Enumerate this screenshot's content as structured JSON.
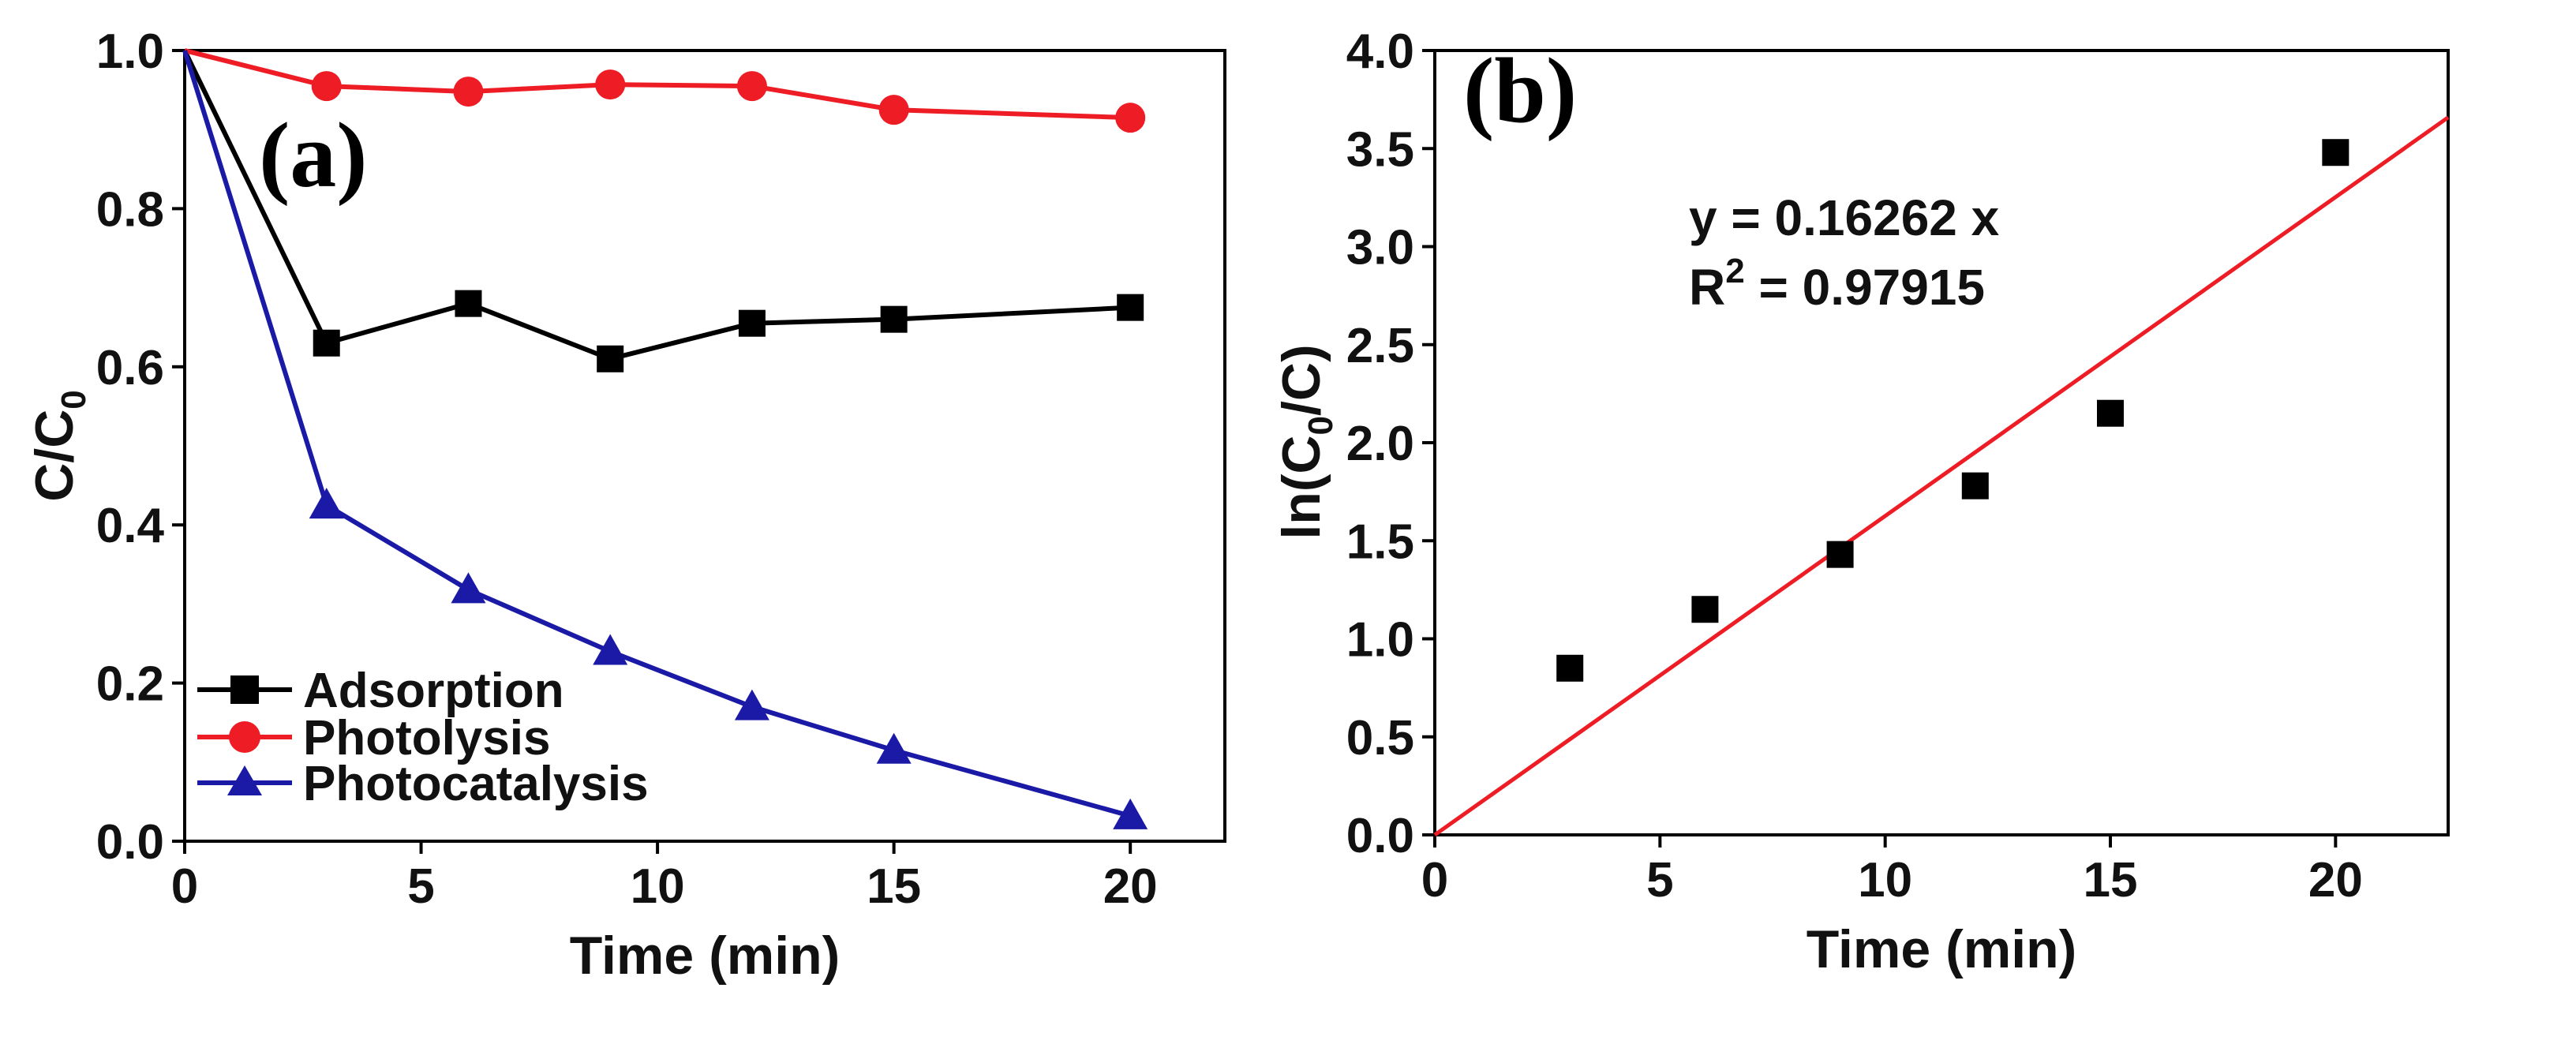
{
  "chart_data": [
    {
      "type": "line",
      "panel_label": "(a)",
      "xlabel": "Time (min)",
      "ylabel": {
        "main": "C/C",
        "sub": "0"
      },
      "xlim": [
        0,
        22
      ],
      "ylim": [
        0,
        1.0
      ],
      "xticks": [
        0,
        5,
        10,
        15,
        20
      ],
      "xtick_labels": [
        "0",
        "5",
        "10",
        "15",
        "20"
      ],
      "yticks": [
        0,
        0.2,
        0.4,
        0.6,
        0.8,
        1.0
      ],
      "ytick_labels": [
        "0.0",
        "0.2",
        "0.4",
        "0.6",
        "0.8",
        "1.0"
      ],
      "legend_position": "bottom-left",
      "series": [
        {
          "name": "Adsorption",
          "color": "#000000",
          "marker": "square",
          "x": [
            0,
            3,
            6,
            9,
            12,
            15,
            20
          ],
          "y": [
            1.0,
            0.63,
            0.68,
            0.61,
            0.655,
            0.66,
            0.675
          ]
        },
        {
          "name": "Photolysis",
          "color": "#ee1c24",
          "marker": "circle",
          "x": [
            0,
            3,
            6,
            9,
            12,
            15,
            20
          ],
          "y": [
            1.0,
            0.955,
            0.948,
            0.957,
            0.955,
            0.925,
            0.915
          ]
        },
        {
          "name": "Photocatalysis",
          "color": "#1a1aa6",
          "marker": "triangle",
          "x": [
            0,
            3,
            6,
            9,
            12,
            15,
            20
          ],
          "y": [
            1.0,
            0.425,
            0.318,
            0.24,
            0.17,
            0.115,
            0.032
          ]
        }
      ]
    },
    {
      "type": "scatter",
      "panel_label": "(b)",
      "xlabel": "Time (min)",
      "ylabel": {
        "pre": "ln(C",
        "sub": "0",
        "post": "/C)"
      },
      "xlim": [
        0,
        22.5
      ],
      "ylim": [
        0,
        4.0
      ],
      "xticks": [
        0,
        5,
        10,
        15,
        20
      ],
      "xtick_labels": [
        "0",
        "5",
        "10",
        "15",
        "20"
      ],
      "yticks": [
        0,
        0.5,
        1.0,
        1.5,
        2.0,
        2.5,
        3.0,
        3.5,
        4.0
      ],
      "ytick_labels": [
        "0.0",
        "0.5",
        "1.0",
        "1.5",
        "2.0",
        "2.5",
        "3.0",
        "3.5",
        "4.0"
      ],
      "points": {
        "color": "#000000",
        "marker": "square",
        "x": [
          3,
          6,
          9,
          12,
          15,
          20
        ],
        "y": [
          0.85,
          1.15,
          1.43,
          1.78,
          2.15,
          3.48
        ]
      },
      "fit": {
        "color": "#ee1c24",
        "slope": 0.16262,
        "intercept": 0
      },
      "equation": "y = 0.16262 x",
      "r2": {
        "pre": "R",
        "sup": "2",
        "post": " = 0.97915"
      }
    }
  ]
}
